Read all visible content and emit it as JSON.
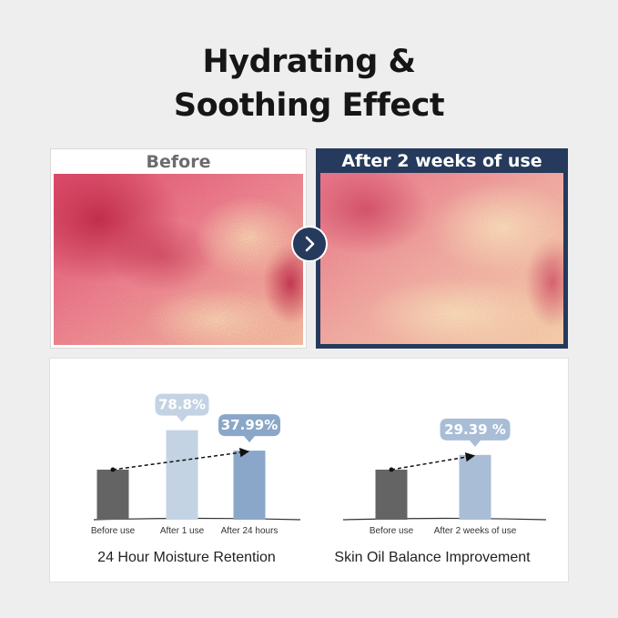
{
  "headline": {
    "line1": "Hydrating &",
    "line2": "Soothing Effect"
  },
  "comparison": {
    "before_label": "Before",
    "after_label": "After 2 weeks of use",
    "arrow_icon": "chevron-right-icon"
  },
  "colors": {
    "navy": "#253a5c",
    "bar_before": "#646464",
    "bar_light": "#c3d3e4",
    "bar_medium": "#8aa7c9",
    "badge": "#a9bdd6"
  },
  "chart_data": [
    {
      "type": "bar",
      "title": "24 Hour Moisture Retention",
      "categories": [
        "Before use",
        "After 1 use",
        "After 24 hours"
      ],
      "values": [
        100,
        178.8,
        137.99
      ],
      "ylim": [
        0,
        200
      ],
      "annotations": [
        {
          "category": "After 1 use",
          "text": "78.8%"
        },
        {
          "category": "After 24 hours",
          "text": "37.99%"
        }
      ],
      "trend_arrow": {
        "from": "Before use",
        "to": "After 24 hours",
        "style": "dashed"
      },
      "grid": false,
      "legend": "none"
    },
    {
      "type": "bar",
      "title": "Skin Oil Balance Improvement",
      "categories": [
        "Before use",
        "After 2 weeks of use"
      ],
      "values": [
        100,
        129.39
      ],
      "ylim": [
        0,
        200
      ],
      "annotations": [
        {
          "category": "After 2 weeks of use",
          "text": "29.39 %"
        }
      ],
      "trend_arrow": {
        "from": "Before use",
        "to": "After 2 weeks of use",
        "style": "dashed"
      },
      "grid": false,
      "legend": "none"
    }
  ]
}
